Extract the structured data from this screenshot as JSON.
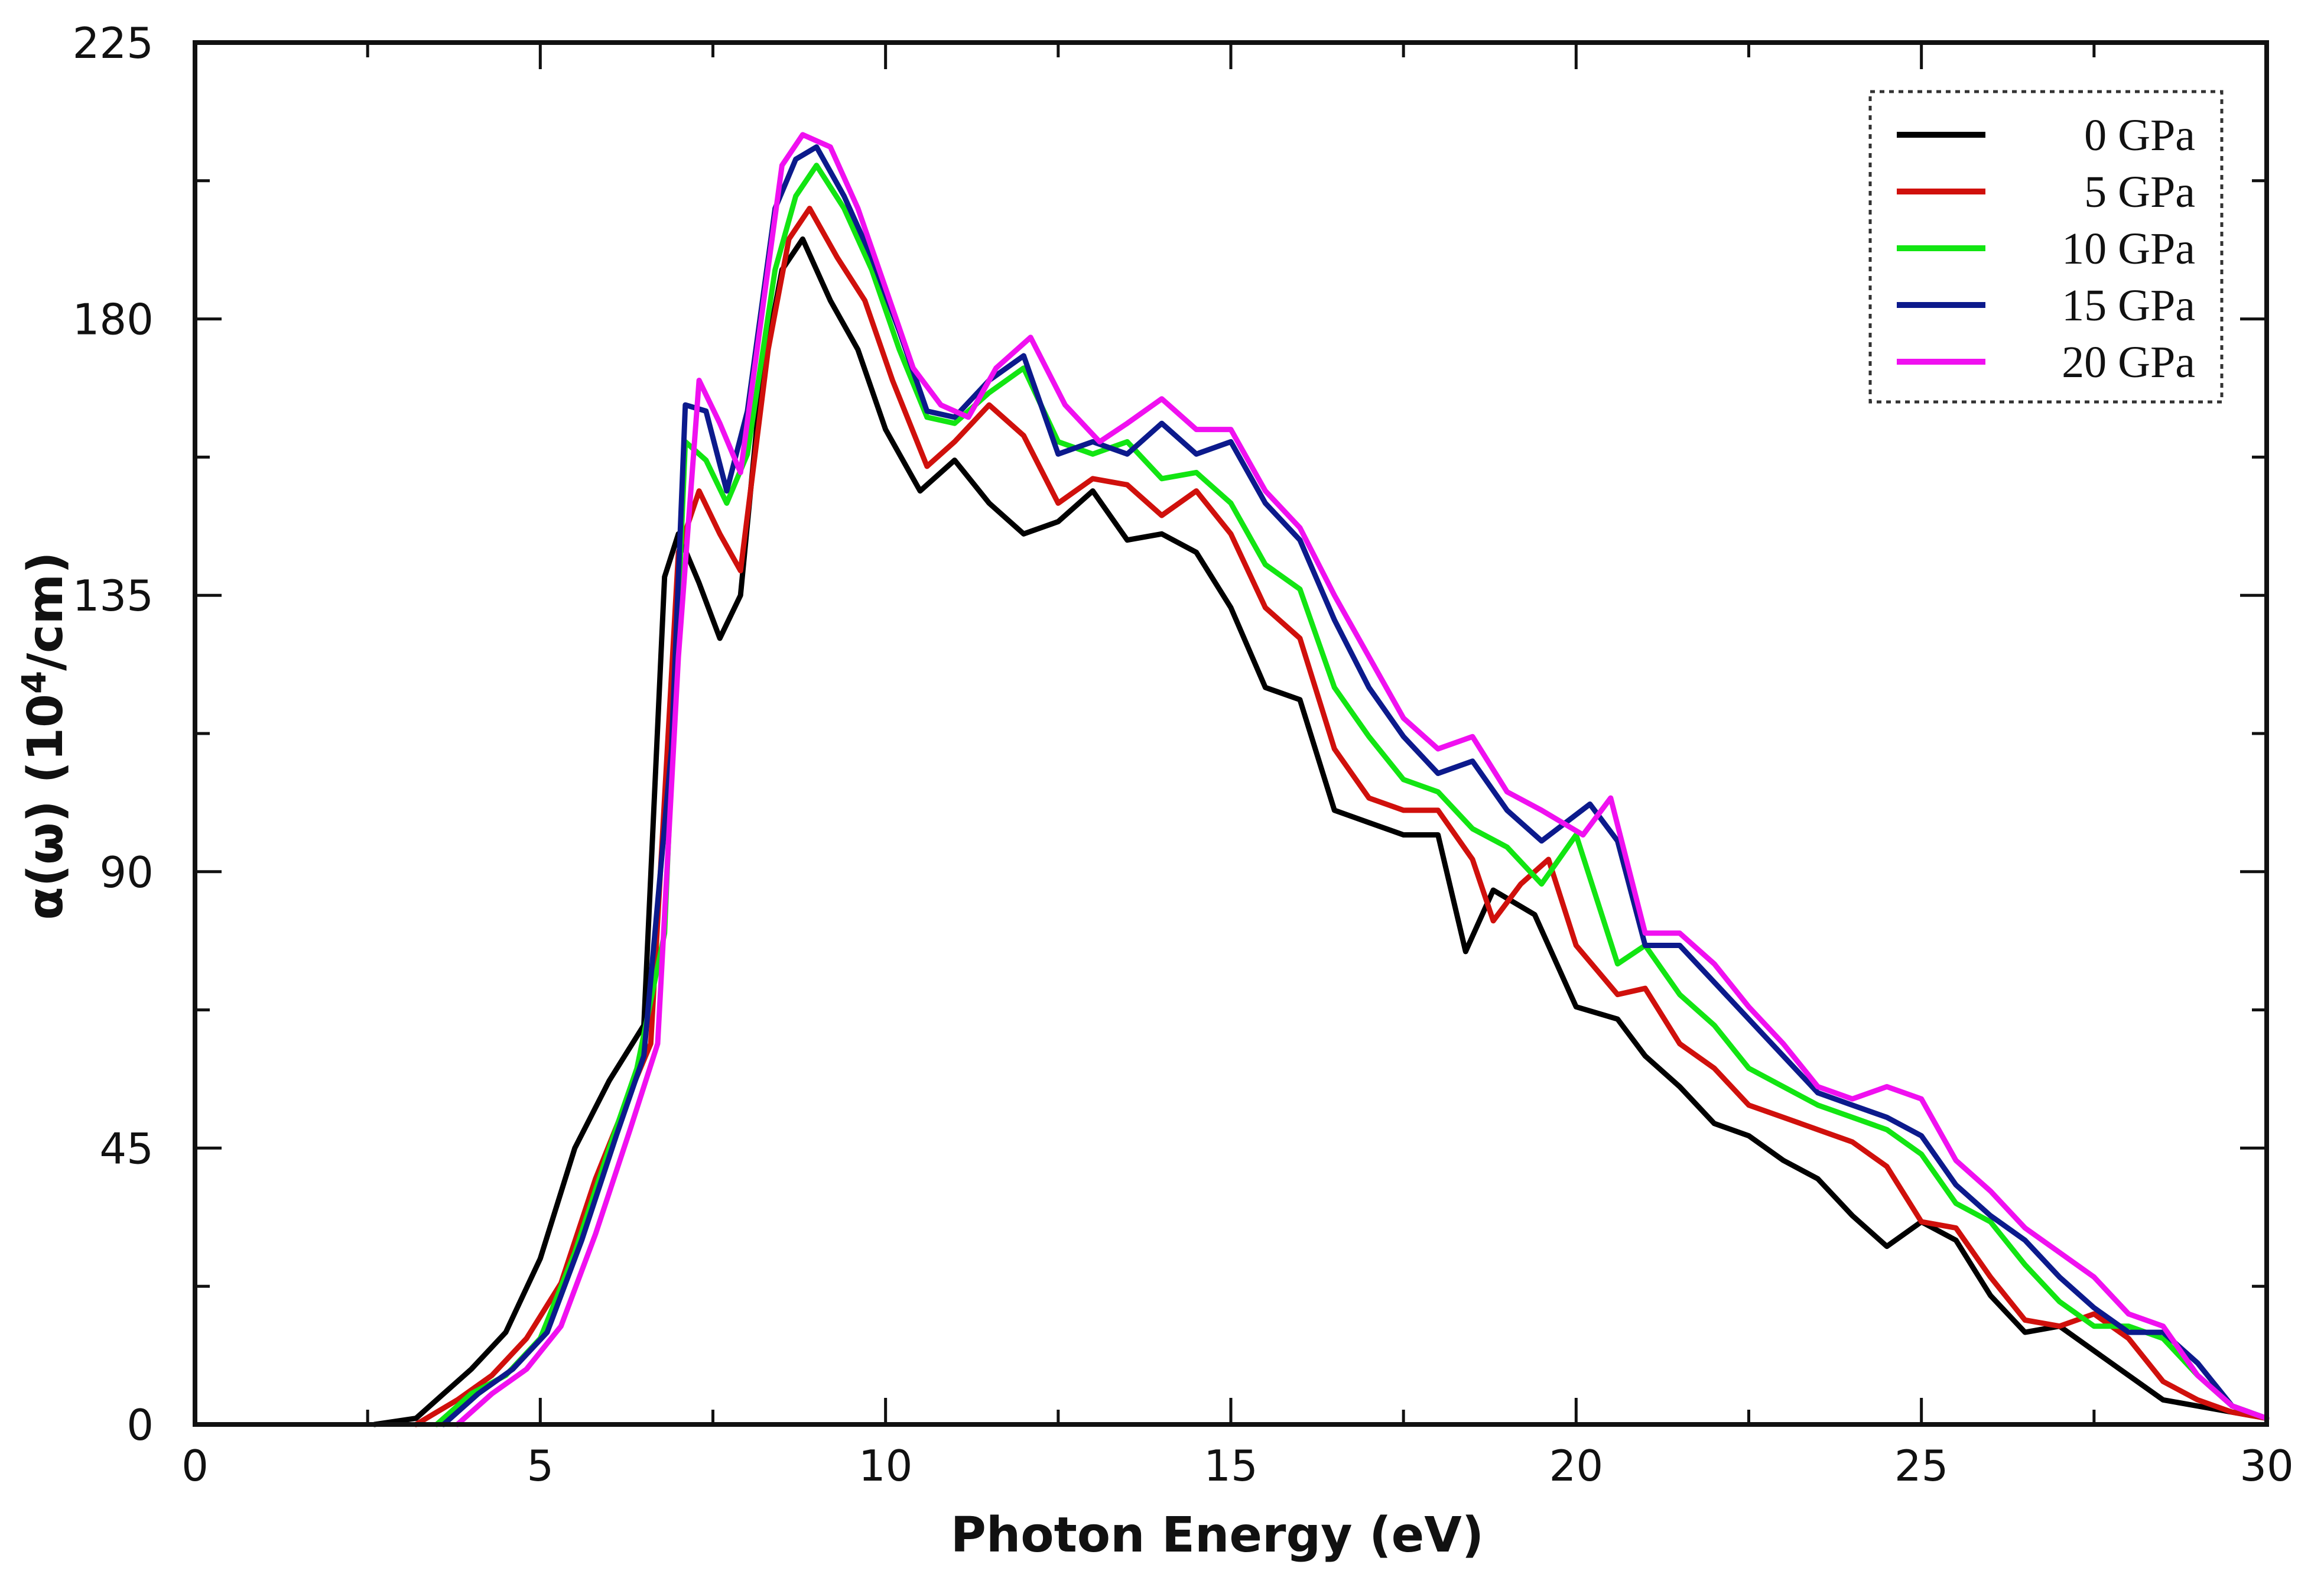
{
  "chart_data": {
    "type": "line",
    "xlabel": "Photon Energy (eV)",
    "ylabel_main": "α(ω) (10",
    "ylabel_sup": "4",
    "ylabel_tail": "/cm)",
    "xlim": [
      0,
      30
    ],
    "ylim": [
      0,
      225
    ],
    "xticks": [
      0,
      5,
      10,
      15,
      20,
      25,
      30
    ],
    "yticks": [
      0,
      45,
      90,
      135,
      180,
      225
    ],
    "xtick_labels": [
      "0",
      "5",
      "10",
      "15",
      "20",
      "25",
      "30"
    ],
    "ytick_labels": [
      "0",
      "45",
      "90",
      "135",
      "180",
      "225"
    ],
    "legend_position": "top-right",
    "series": [
      {
        "name": "0 GPa",
        "color": "#000000",
        "x": [
          2.6,
          3.2,
          3.6,
          4,
          4.5,
          5,
          5.5,
          6,
          6.5,
          6.8,
          7,
          7.3,
          7.6,
          7.9,
          8.2,
          8.5,
          8.8,
          9.2,
          9.6,
          10,
          10.5,
          11,
          11.5,
          12,
          12.5,
          13,
          13.5,
          14,
          14.5,
          15,
          15.5,
          16,
          16.5,
          17,
          17.5,
          18,
          18.4,
          18.8,
          19.4,
          20,
          20.6,
          21,
          21.5,
          22,
          22.5,
          23,
          23.5,
          24,
          24.5,
          25,
          25.5,
          26,
          26.5,
          27,
          27.5,
          28,
          28.5,
          29,
          29.5,
          30
        ],
        "y": [
          0,
          1,
          5,
          9,
          15,
          27,
          45,
          56,
          65,
          138,
          145,
          137,
          128,
          135,
          170,
          188,
          193,
          183,
          175,
          162,
          152,
          157,
          150,
          145,
          147,
          152,
          144,
          145,
          142,
          133,
          120,
          118,
          100,
          98,
          96,
          96,
          77,
          87,
          83,
          68,
          66,
          60,
          55,
          49,
          47,
          43,
          40,
          34,
          29,
          33,
          30,
          21,
          15,
          16,
          12,
          8,
          4,
          3,
          2,
          1
        ]
      },
      {
        "name": "5 GPa",
        "color": "#d0100c",
        "x": [
          3.2,
          3.8,
          4.3,
          4.8,
          5.3,
          5.8,
          6.3,
          6.6,
          7,
          7.3,
          7.6,
          7.9,
          8.3,
          8.6,
          8.9,
          9.3,
          9.7,
          10.1,
          10.6,
          11,
          11.5,
          12,
          12.5,
          13,
          13.5,
          14,
          14.5,
          15,
          15.5,
          16,
          16.5,
          17,
          17.5,
          18,
          18.5,
          18.8,
          19.2,
          19.6,
          20,
          20.6,
          21,
          21.5,
          22,
          22.5,
          23,
          23.5,
          24,
          24.5,
          25,
          25.5,
          26,
          26.5,
          27,
          27.5,
          28,
          28.5,
          29,
          29.5,
          30
        ],
        "y": [
          0,
          4,
          8,
          14,
          23,
          40,
          54,
          62,
          142,
          152,
          145,
          139,
          175,
          193,
          198,
          190,
          183,
          170,
          156,
          160,
          166,
          161,
          150,
          154,
          153,
          148,
          152,
          145,
          133,
          128,
          110,
          102,
          100,
          100,
          92,
          82,
          88,
          92,
          78,
          70,
          71,
          62,
          58,
          52,
          50,
          48,
          46,
          42,
          33,
          32,
          24,
          17,
          16,
          18,
          14,
          7,
          4,
          2,
          1
        ]
      },
      {
        "name": "10 GPa",
        "color": "#12e512",
        "x": [
          3.5,
          4,
          4.5,
          5,
          5.5,
          6,
          6.4,
          6.8,
          7.1,
          7.4,
          7.7,
          8,
          8.4,
          8.7,
          9,
          9.4,
          9.8,
          10.2,
          10.6,
          11,
          11.5,
          12,
          12.5,
          13,
          13.5,
          14,
          14.5,
          15,
          15.5,
          16,
          16.5,
          17,
          17.5,
          18,
          18.5,
          19,
          19.5,
          20,
          20.6,
          21,
          21.5,
          22,
          22.5,
          23,
          23.5,
          24,
          24.5,
          25,
          25.5,
          26,
          26.5,
          27,
          27.5,
          28,
          28.5,
          29,
          29.5,
          30
        ],
        "y": [
          0,
          5,
          8,
          14,
          28,
          45,
          58,
          80,
          160,
          157,
          150,
          158,
          188,
          200,
          205,
          198,
          188,
          175,
          164,
          163,
          168,
          172,
          160,
          158,
          160,
          154,
          155,
          150,
          140,
          136,
          120,
          112,
          105,
          103,
          97,
          94,
          88,
          96,
          75,
          78,
          70,
          65,
          58,
          55,
          52,
          50,
          48,
          44,
          36,
          33,
          26,
          20,
          16,
          16,
          14,
          8,
          3,
          1
        ]
      },
      {
        "name": "15 GPa",
        "color": "#0c1a8c",
        "x": [
          3.6,
          4.1,
          4.6,
          5.1,
          5.6,
          6.1,
          6.5,
          6.9,
          7.1,
          7.4,
          7.7,
          8,
          8.4,
          8.7,
          9,
          9.4,
          9.8,
          10.2,
          10.6,
          11,
          11.5,
          12,
          12.5,
          13,
          13.5,
          14,
          14.5,
          15,
          15.5,
          16,
          16.5,
          17,
          17.5,
          18,
          18.5,
          19,
          19.5,
          20.2,
          20.6,
          21,
          21.5,
          22,
          22.5,
          23,
          23.5,
          24,
          24.5,
          25,
          25.5,
          26,
          26.5,
          27,
          27.5,
          28,
          28.5,
          29,
          29.5,
          30
        ],
        "y": [
          0,
          5,
          9,
          15,
          30,
          47,
          60,
          110,
          166,
          165,
          152,
          165,
          198,
          206,
          208,
          200,
          190,
          178,
          165,
          164,
          170,
          174,
          158,
          160,
          158,
          163,
          158,
          160,
          150,
          144,
          131,
          120,
          112,
          106,
          108,
          100,
          95,
          101,
          95,
          78,
          78,
          72,
          66,
          60,
          54,
          52,
          50,
          47,
          39,
          34,
          30,
          24,
          19,
          15,
          15,
          10,
          3,
          1
        ]
      },
      {
        "name": "20 GPa",
        "color": "#f010f0",
        "x": [
          3.8,
          4.3,
          4.8,
          5.3,
          5.8,
          6.3,
          6.7,
          7,
          7.3,
          7.6,
          7.9,
          8.2,
          8.5,
          8.8,
          9.2,
          9.6,
          10,
          10.4,
          10.8,
          11.2,
          11.6,
          12.1,
          12.6,
          13.1,
          13.5,
          14,
          14.5,
          15,
          15.5,
          16,
          16.5,
          17,
          17.5,
          18,
          18.5,
          19,
          19.5,
          20.1,
          20.5,
          21,
          21.5,
          22,
          22.5,
          23,
          23.5,
          24,
          24.5,
          25,
          25.5,
          26,
          26.5,
          27,
          27.5,
          28,
          28.5,
          29,
          29.5,
          30
        ],
        "y": [
          0,
          5,
          9,
          16,
          31,
          48,
          62,
          125,
          170,
          163,
          155,
          180,
          205,
          210,
          208,
          198,
          185,
          172,
          166,
          164,
          172,
          177,
          166,
          160,
          163,
          167,
          162,
          162,
          152,
          146,
          135,
          125,
          115,
          110,
          112,
          103,
          100,
          96,
          102,
          80,
          80,
          75,
          68,
          62,
          55,
          53,
          55,
          53,
          43,
          38,
          32,
          28,
          24,
          18,
          16,
          8,
          3,
          1
        ]
      }
    ]
  }
}
